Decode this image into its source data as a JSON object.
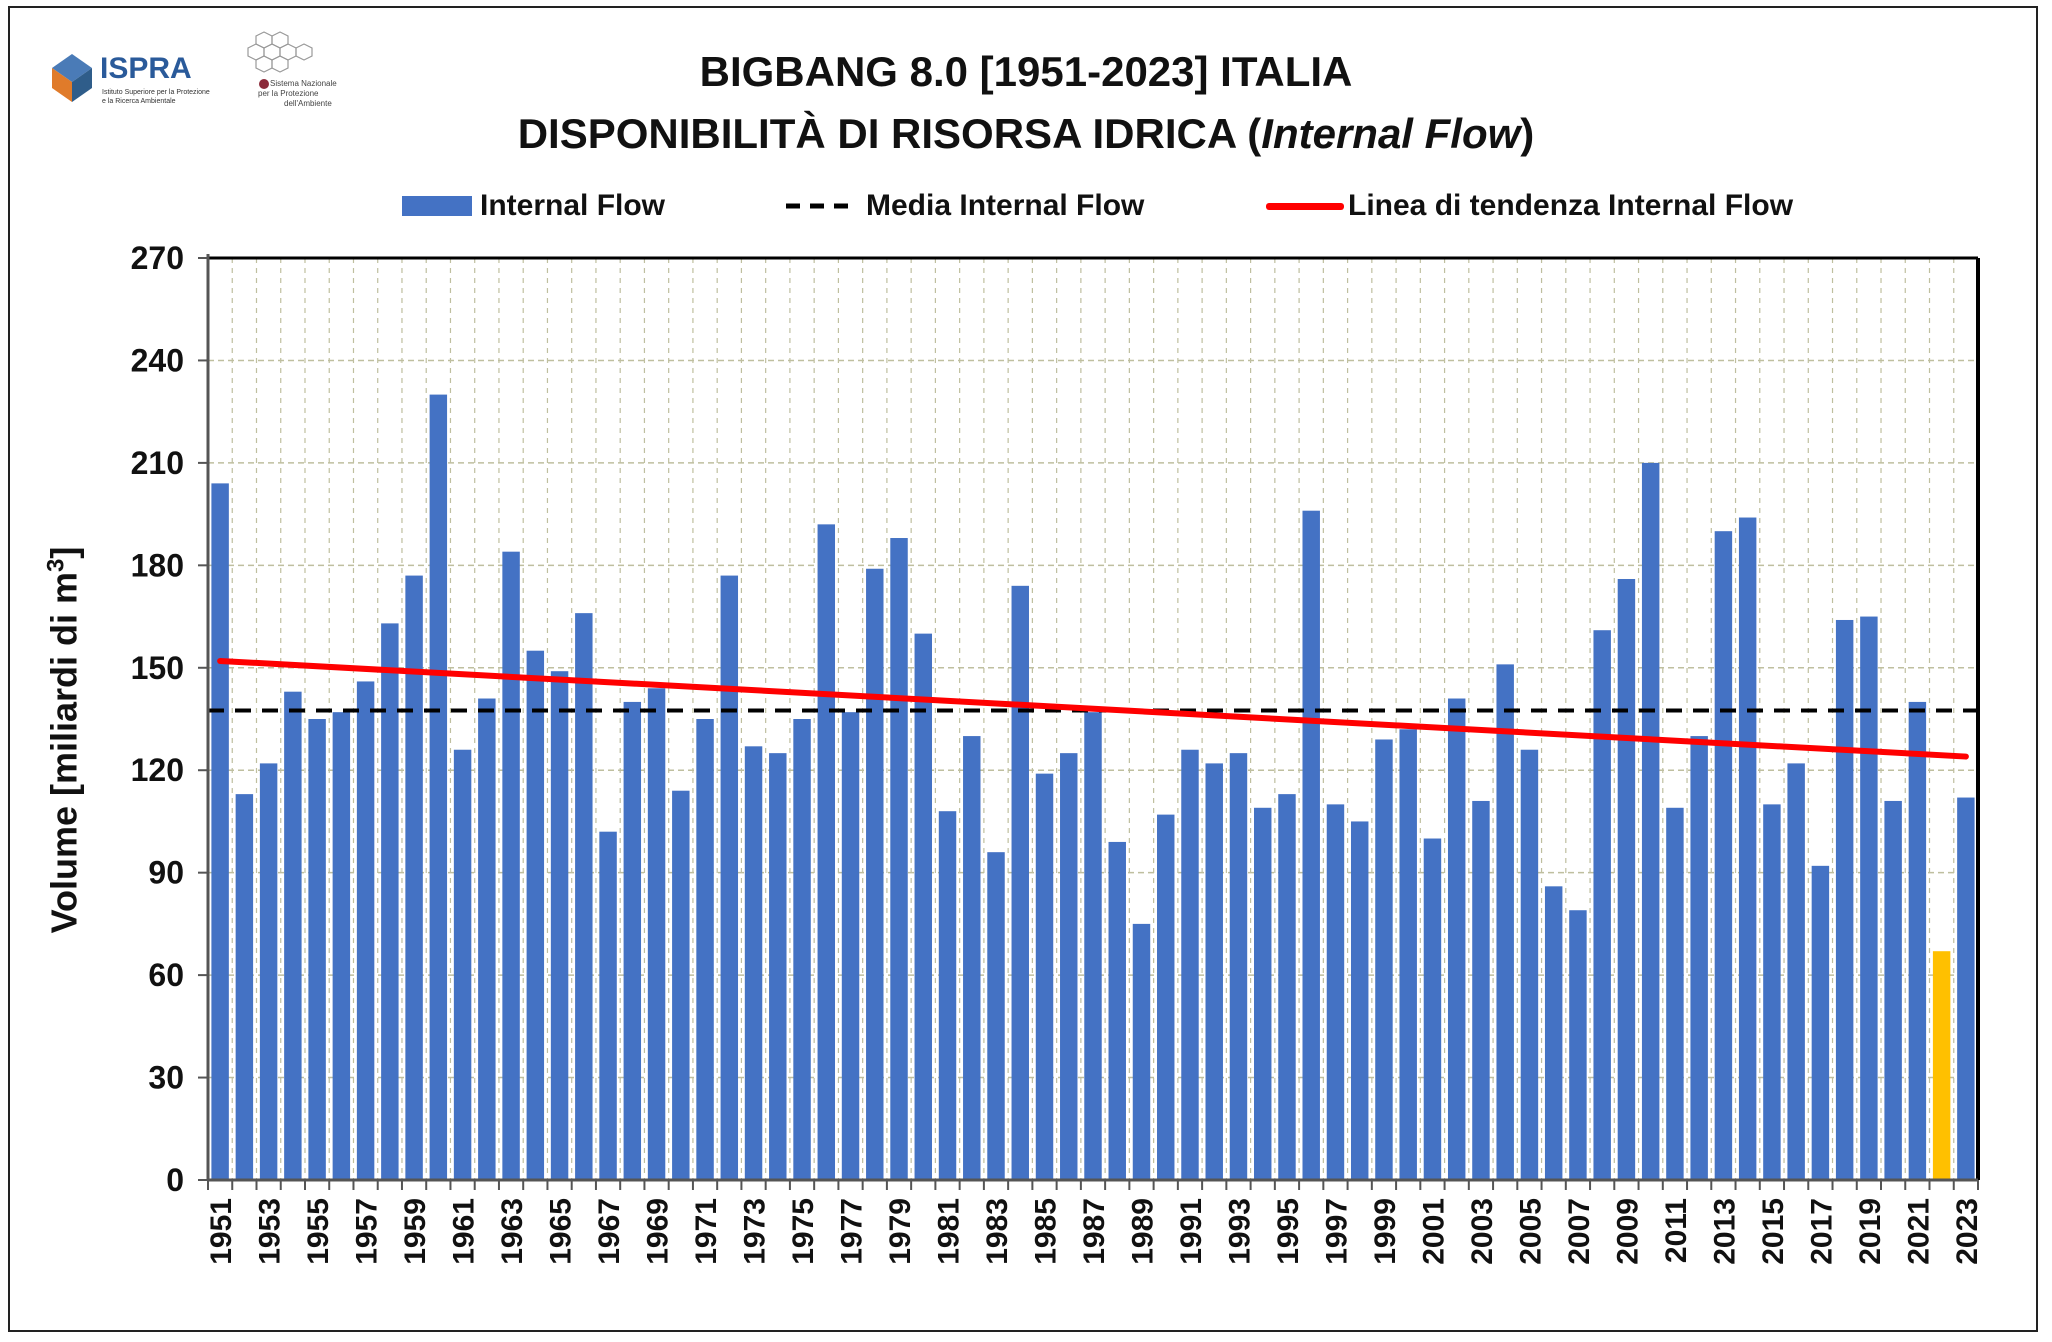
{
  "header": {
    "title_line1": "BIGBANG 8.0 [1951-2023] ITALIA",
    "title_line2_prefix": "DISPONIBILITÀ DI RISORSA IDRICA (",
    "title_line2_italic": "Internal Flow",
    "title_line2_suffix": ")",
    "ispra_logo_text": "ISPRA",
    "ispra_logo_subtext_1": "Istituto Superiore per la Protezione",
    "ispra_logo_subtext_2": "e la Ricerca Ambientale",
    "snpa_logo_text_1": "Sistema Nazionale",
    "snpa_logo_text_2": "per la Protezione",
    "snpa_logo_text_3": "dell'Ambiente"
  },
  "colors": {
    "bar": "#4472C4",
    "bar_highlight": "#FFC000",
    "mean_line": "#000000",
    "trend_line": "#FF0000",
    "grid": "#BFBF9F"
  },
  "chart_data": {
    "type": "bar",
    "title": "BIGBANG 8.0 [1951-2023] ITALIA — DISPONIBILITÀ DI RISORSA IDRICA (Internal Flow)",
    "ylabel": "Volume [miliardi di m³]",
    "ylabel_main": "Volume [miliardi di m",
    "ylabel_sup": "3",
    "ylabel_end": "]",
    "xlabel": "",
    "ylim": [
      0,
      270
    ],
    "yticks": [
      0,
      30,
      60,
      90,
      120,
      150,
      180,
      210,
      240,
      270
    ],
    "grid": true,
    "legend_position": "top",
    "legend": [
      "Internal Flow",
      "Media Internal Flow",
      "Linea di tendenza Internal Flow"
    ],
    "x": [
      1951,
      1952,
      1953,
      1954,
      1955,
      1956,
      1957,
      1958,
      1959,
      1960,
      1961,
      1962,
      1963,
      1964,
      1965,
      1966,
      1967,
      1968,
      1969,
      1970,
      1971,
      1972,
      1973,
      1974,
      1975,
      1976,
      1977,
      1978,
      1979,
      1980,
      1981,
      1982,
      1983,
      1984,
      1985,
      1986,
      1987,
      1988,
      1989,
      1990,
      1991,
      1992,
      1993,
      1994,
      1995,
      1996,
      1997,
      1998,
      1999,
      2000,
      2001,
      2002,
      2003,
      2004,
      2005,
      2006,
      2007,
      2008,
      2009,
      2010,
      2011,
      2012,
      2013,
      2014,
      2015,
      2016,
      2017,
      2018,
      2019,
      2020,
      2021,
      2022,
      2023
    ],
    "x_tick_labels": [
      "1951",
      "1953",
      "1955",
      "1957",
      "1959",
      "1961",
      "1963",
      "1965",
      "1967",
      "1969",
      "1971",
      "1973",
      "1975",
      "1977",
      "1979",
      "1981",
      "1983",
      "1985",
      "1987",
      "1989",
      "1991",
      "1993",
      "1995",
      "1997",
      "1999",
      "2001",
      "2003",
      "2005",
      "2007",
      "2009",
      "2011",
      "2013",
      "2015",
      "2017",
      "2019",
      "2021",
      "2023"
    ],
    "series": [
      {
        "name": "Internal Flow",
        "values": [
          204,
          113,
          122,
          143,
          135,
          137,
          146,
          163,
          177,
          230,
          126,
          141,
          184,
          155,
          149,
          166,
          102,
          140,
          144,
          114,
          135,
          177,
          127,
          125,
          135,
          192,
          137,
          179,
          188,
          160,
          108,
          130,
          96,
          174,
          119,
          125,
          137,
          99,
          75,
          107,
          126,
          122,
          125,
          109,
          113,
          196,
          110,
          105,
          129,
          132,
          100,
          141,
          111,
          151,
          126,
          86,
          79,
          161,
          176,
          210,
          109,
          130,
          190,
          194,
          110,
          122,
          92,
          164,
          165,
          111,
          140,
          67,
          112
        ]
      }
    ],
    "highlight_year": 2022,
    "mean": 137.5,
    "trend": {
      "start_year": 1951,
      "start_value": 152,
      "end_year": 2023,
      "end_value": 124
    }
  }
}
